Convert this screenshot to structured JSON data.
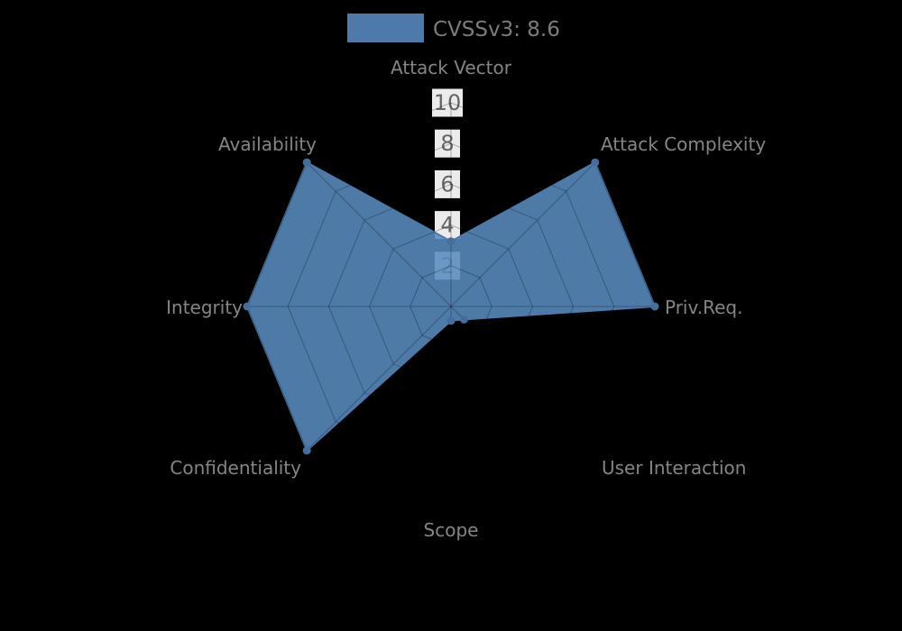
{
  "legend": {
    "label": "CVSSv3: 8.6",
    "swatch_color": "#4d7aa8"
  },
  "chart_data": {
    "type": "radar",
    "title": "",
    "categories": [
      "Attack Vector",
      "Attack Complexity",
      "Priv.Req.",
      "User Interaction",
      "Scope",
      "Confidentiality",
      "Integrity",
      "Availability"
    ],
    "series": [
      {
        "name": "CVSSv3: 8.6",
        "values": [
          3.2,
          10,
          10,
          0.9,
          0.7,
          10,
          10,
          10
        ]
      }
    ],
    "radial_ticks": [
      2,
      4,
      6,
      8,
      10
    ],
    "rmax": 10,
    "grid": true,
    "legend_position": "top-center",
    "colors": {
      "background": "#000000",
      "fill": "#4d7aa8",
      "fill_base": "#588bbe",
      "marker": "#456e9d",
      "grid_line": "rgba(0,0,0,0.28)",
      "tick_text": "#666666",
      "tick_backdrop": "#ffffff",
      "axis_label_text": "#858585",
      "legend_text": "#7c7c7c"
    }
  }
}
